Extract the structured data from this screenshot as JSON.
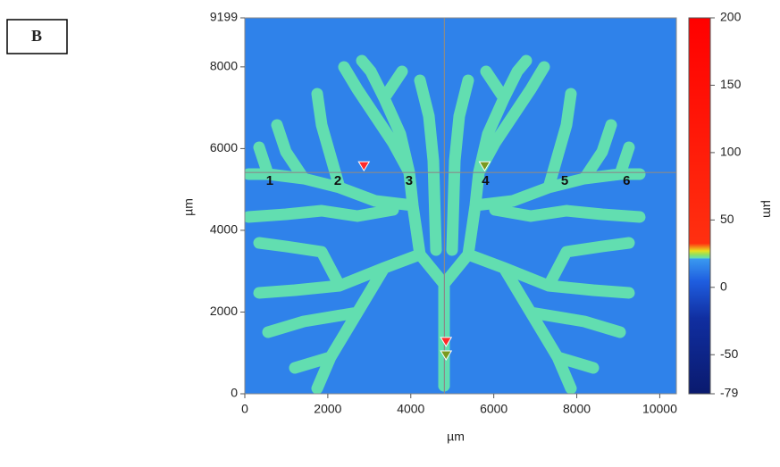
{
  "panel_label": "B",
  "chart_data": {
    "type": "image",
    "x_label": "µm",
    "y_label": "µm",
    "xlim": [
      0,
      10400
    ],
    "ylim": [
      0,
      9199
    ],
    "xticks": [
      0,
      2000,
      4000,
      6000,
      8000,
      10000
    ],
    "yticks": [
      0,
      2000,
      4000,
      6000,
      8000,
      9199
    ],
    "crosshair": {
      "x": 4810,
      "y": 5415
    },
    "annotations": [
      {
        "text": "1",
        "x": 600,
        "y": 5200
      },
      {
        "text": "2",
        "x": 2240,
        "y": 5200
      },
      {
        "text": "3",
        "x": 3960,
        "y": 5200
      },
      {
        "text": "4",
        "x": 5800,
        "y": 5200
      },
      {
        "text": "5",
        "x": 7710,
        "y": 5200
      },
      {
        "text": "6",
        "x": 9200,
        "y": 5200
      }
    ],
    "markers": [
      {
        "x": 2870,
        "y": 5570,
        "color": "#ff2a2a"
      },
      {
        "x": 5780,
        "y": 5570,
        "color": "#7a9a20"
      },
      {
        "x": 4850,
        "y": 1270,
        "color": "#ff2a2a"
      },
      {
        "x": 4850,
        "y": 940,
        "color": "#7a9a20"
      }
    ],
    "colorbar": {
      "label": "µm",
      "lim": [
        -79,
        200
      ],
      "ticks": [
        -79,
        -50,
        0,
        50,
        100,
        150,
        200
      ]
    }
  }
}
